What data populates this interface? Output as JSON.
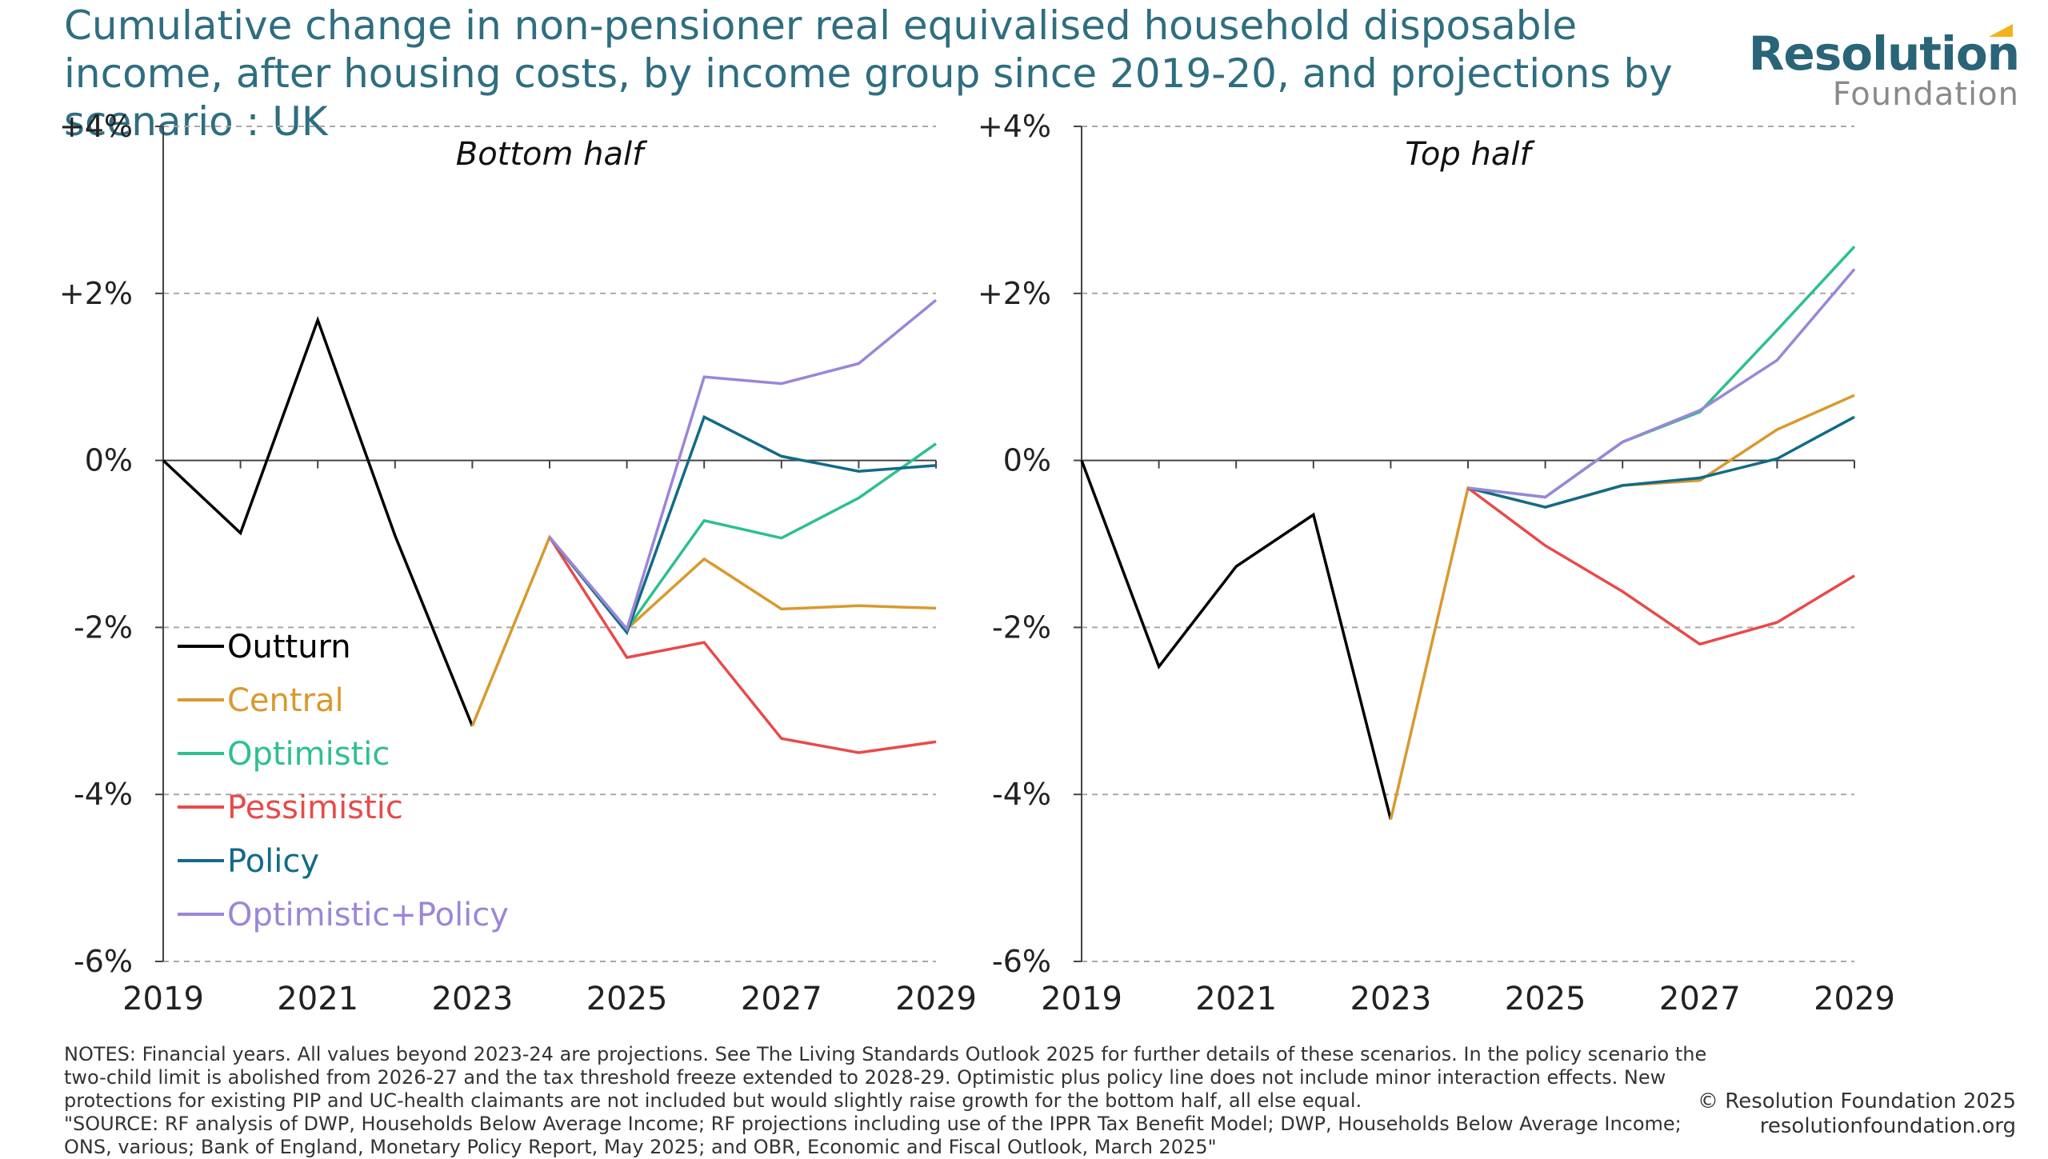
{
  "header": {
    "title": "Cumulative change in non-pensioner real equivalised household disposable income, after housing costs, by income group since 2019-20, and projections by scenario : UK"
  },
  "logo": {
    "main": "Resolution",
    "sub": "Foundation",
    "accent_color": "#f2b21b",
    "main_color": "#2a6478"
  },
  "chart_data": [
    {
      "type": "line",
      "title": "Bottom half",
      "xlabel": "",
      "ylabel": "",
      "x": [
        2019,
        2020,
        2021,
        2022,
        2023,
        2024,
        2025,
        2026,
        2027,
        2028,
        2029
      ],
      "xticks": [
        2019,
        2021,
        2023,
        2025,
        2027,
        2029
      ],
      "xtick_labels": [
        "2019",
        "2021",
        "2023",
        "2025",
        "2027",
        "2029"
      ],
      "yticks": [
        4,
        2,
        0,
        -2,
        -4,
        -6
      ],
      "ytick_labels": [
        "+4%",
        "+2%",
        "0%",
        "-2%",
        "-4%",
        "-6%"
      ],
      "ylim": [
        -6,
        4
      ],
      "xlim": [
        2019,
        2029
      ],
      "grid": "horizontal-dashed",
      "legend": "bottom-left",
      "series": [
        {
          "name": "Outturn",
          "color": "#000000",
          "points": [
            [
              2019,
              0.0
            ],
            [
              2020,
              -0.87
            ],
            [
              2021,
              1.68
            ],
            [
              2022,
              -0.9
            ],
            [
              2023,
              -3.18
            ]
          ]
        },
        {
          "name": "Central",
          "color": "#d9992e",
          "points": [
            [
              2023,
              -3.18
            ],
            [
              2024,
              -0.92
            ],
            [
              2025,
              -2.02
            ],
            [
              2026,
              -1.18
            ],
            [
              2027,
              -1.78
            ],
            [
              2028,
              -1.74
            ],
            [
              2029,
              -1.77
            ]
          ]
        },
        {
          "name": "Optimistic",
          "color": "#2ec08c",
          "points": [
            [
              2024,
              -0.92
            ],
            [
              2025,
              -2.02
            ],
            [
              2026,
              -0.72
            ],
            [
              2027,
              -0.93
            ],
            [
              2028,
              -0.45
            ],
            [
              2029,
              0.2
            ]
          ]
        },
        {
          "name": "Pessimistic",
          "color": "#e84a4a",
          "points": [
            [
              2024,
              -0.92
            ],
            [
              2025,
              -2.36
            ],
            [
              2026,
              -2.18
            ],
            [
              2027,
              -3.33
            ],
            [
              2028,
              -3.5
            ],
            [
              2029,
              -3.37
            ]
          ]
        },
        {
          "name": "Policy",
          "color": "#126b87",
          "points": [
            [
              2024,
              -0.92
            ],
            [
              2025,
              -2.06
            ],
            [
              2026,
              0.52
            ],
            [
              2027,
              0.05
            ],
            [
              2028,
              -0.13
            ],
            [
              2029,
              -0.06
            ]
          ]
        },
        {
          "name": "Optimistic+Policy",
          "color": "#9b86d8",
          "points": [
            [
              2024,
              -0.92
            ],
            [
              2025,
              -2.02
            ],
            [
              2026,
              1.0
            ],
            [
              2027,
              0.92
            ],
            [
              2028,
              1.16
            ],
            [
              2029,
              1.92
            ]
          ]
        }
      ]
    },
    {
      "type": "line",
      "title": "Top half",
      "xlabel": "",
      "ylabel": "",
      "x": [
        2019,
        2020,
        2021,
        2022,
        2023,
        2024,
        2025,
        2026,
        2027,
        2028,
        2029
      ],
      "xticks": [
        2019,
        2021,
        2023,
        2025,
        2027,
        2029
      ],
      "xtick_labels": [
        "2019",
        "2021",
        "2023",
        "2025",
        "2027",
        "2029"
      ],
      "yticks": [
        4,
        2,
        0,
        -2,
        -4,
        -6
      ],
      "ytick_labels": [
        "+4%",
        "+2%",
        "0%",
        "-2%",
        "-4%",
        "-6%"
      ],
      "ylim": [
        -6,
        4
      ],
      "xlim": [
        2019,
        2029
      ],
      "grid": "horizontal-dashed",
      "series": [
        {
          "name": "Outturn",
          "color": "#000000",
          "points": [
            [
              2019,
              0.0
            ],
            [
              2020,
              -2.47
            ],
            [
              2021,
              -1.27
            ],
            [
              2022,
              -0.65
            ],
            [
              2023,
              -4.3
            ]
          ]
        },
        {
          "name": "Central",
          "color": "#d9992e",
          "points": [
            [
              2023,
              -4.3
            ],
            [
              2024,
              -0.33
            ],
            [
              2025,
              -0.56
            ],
            [
              2026,
              -0.3
            ],
            [
              2027,
              -0.24
            ],
            [
              2028,
              0.37
            ],
            [
              2029,
              0.78
            ]
          ]
        },
        {
          "name": "Optimistic",
          "color": "#2ec08c",
          "points": [
            [
              2024,
              -0.33
            ],
            [
              2025,
              -0.44
            ],
            [
              2026,
              0.22
            ],
            [
              2027,
              0.58
            ],
            [
              2028,
              1.56
            ],
            [
              2029,
              2.56
            ]
          ]
        },
        {
          "name": "Pessimistic",
          "color": "#e84a4a",
          "points": [
            [
              2024,
              -0.33
            ],
            [
              2025,
              -1.02
            ],
            [
              2026,
              -1.57
            ],
            [
              2027,
              -2.2
            ],
            [
              2028,
              -1.94
            ],
            [
              2029,
              -1.38
            ]
          ]
        },
        {
          "name": "Policy",
          "color": "#126b87",
          "points": [
            [
              2024,
              -0.33
            ],
            [
              2025,
              -0.56
            ],
            [
              2026,
              -0.3
            ],
            [
              2027,
              -0.21
            ],
            [
              2028,
              0.02
            ],
            [
              2029,
              0.52
            ]
          ]
        },
        {
          "name": "Optimistic+Policy",
          "color": "#9b86d8",
          "points": [
            [
              2024,
              -0.33
            ],
            [
              2025,
              -0.44
            ],
            [
              2026,
              0.22
            ],
            [
              2027,
              0.6
            ],
            [
              2028,
              1.2
            ],
            [
              2029,
              2.29
            ]
          ]
        }
      ]
    }
  ],
  "footer": {
    "notes": "NOTES: Financial years. All values beyond 2023-24 are projections. See The Living Standards Outlook 2025 for further details of these scenarios. In the policy scenario the two-child limit is abolished from 2026-27 and the tax threshold freeze extended to 2028-29. Optimistic plus policy line does not include minor interaction effects. New protections for existing PIP and UC-health claimants are not included but would slightly raise growth for the bottom half, all else equal.",
    "source": "\"SOURCE: RF analysis of DWP, Households Below Average Income; RF projections including use of the IPPR Tax Benefit Model; DWP, Households Below Average Income; ONS, various; Bank of England, Monetary Policy Report, May 2025; and OBR, Economic and Fiscal Outlook, March 2025\"",
    "copyright": "© Resolution Foundation 2025",
    "website": "resolutionfoundation.org"
  }
}
